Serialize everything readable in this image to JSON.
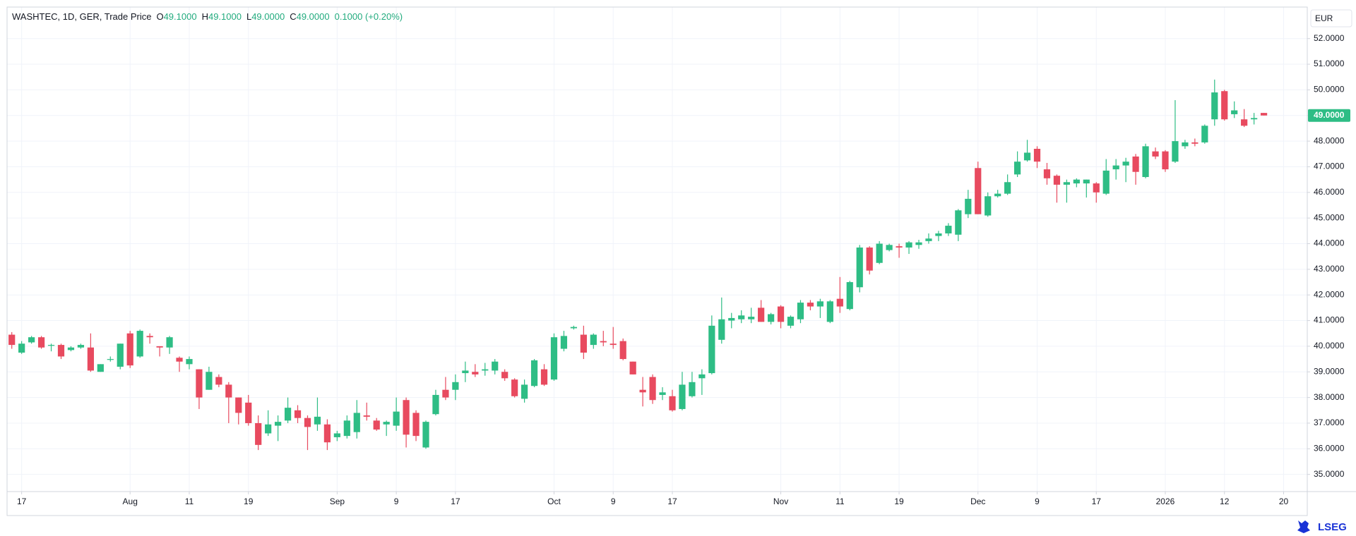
{
  "chart_data": {
    "type": "candlestick",
    "header": {
      "symbol": "WASHTEC, 1D, GER, Trade Price",
      "open_label": "O",
      "open": "49.1000",
      "high_label": "H",
      "high": "49.1000",
      "low_label": "L",
      "low": "49.0000",
      "close_label": "C",
      "close": "49.0000",
      "change": "0.1000 (+0.20%)"
    },
    "currency": "EUR",
    "brand": "LSEG",
    "up_color": "#2ebd85",
    "down_color": "#e84a5f",
    "grid": true,
    "series": {
      "open": [
        40.45,
        39.75,
        40.15,
        40.35,
        40.05,
        40.05,
        39.85,
        39.95,
        39.95,
        39.0,
        39.5,
        39.2,
        40.5,
        39.6,
        40.4,
        40.0,
        39.95,
        39.55,
        39.3,
        39.1,
        38.3,
        38.8,
        38.5,
        38.0,
        37.8,
        37.0,
        36.6,
        36.9,
        37.1,
        37.5,
        37.2,
        36.95,
        36.95,
        36.45,
        36.5,
        36.65,
        37.3,
        37.1,
        36.95,
        36.9,
        37.9,
        37.4,
        36.05,
        37.35,
        38.3,
        38.3,
        38.95,
        39.0,
        39.05,
        39.05,
        39.0,
        38.7,
        37.95,
        38.45,
        39.1,
        38.7,
        39.9,
        40.7,
        40.45,
        40.05,
        40.2,
        40.1,
        40.2,
        39.4,
        38.3,
        38.8,
        38.1,
        38.05,
        37.55,
        38.05,
        38.75,
        38.95,
        40.25,
        41.0,
        41.05,
        41.05,
        41.5,
        40.95,
        41.55,
        40.8,
        41.05,
        41.7,
        41.55,
        40.95,
        41.85,
        41.45,
        42.3,
        43.85,
        43.25,
        43.75,
        43.9,
        43.85,
        43.95,
        44.1,
        44.3,
        44.4,
        44.35,
        45.15,
        46.95,
        45.1,
        45.85,
        45.95,
        46.7,
        47.25,
        47.7,
        46.9,
        46.65,
        46.3,
        46.35,
        46.35,
        46.35,
        45.95,
        46.9,
        47.05,
        47.4,
        46.6,
        47.6,
        47.6,
        47.2,
        47.8,
        47.95,
        47.95,
        48.85,
        49.95,
        49.05,
        48.85,
        48.85,
        49.1
      ],
      "high": [
        40.55,
        40.2,
        40.4,
        40.4,
        40.1,
        40.1,
        40.0,
        40.1,
        40.5,
        39.3,
        39.6,
        40.1,
        40.6,
        40.65,
        40.5,
        40.0,
        40.4,
        39.6,
        39.6,
        39.1,
        39.2,
        38.9,
        38.6,
        38.0,
        38.1,
        37.3,
        37.5,
        37.3,
        38.0,
        37.7,
        37.3,
        38.0,
        37.15,
        36.7,
        37.3,
        37.9,
        37.8,
        37.2,
        37.1,
        38.0,
        38.0,
        37.5,
        37.1,
        38.3,
        38.8,
        38.9,
        39.4,
        39.3,
        39.35,
        39.5,
        39.1,
        38.75,
        38.7,
        39.5,
        39.3,
        40.5,
        40.6,
        40.8,
        40.8,
        40.5,
        40.6,
        40.75,
        40.3,
        39.4,
        38.8,
        38.9,
        38.4,
        38.3,
        39.0,
        39.0,
        39.1,
        41.2,
        41.9,
        41.3,
        41.4,
        41.5,
        41.8,
        41.3,
        41.6,
        41.2,
        41.8,
        41.8,
        41.85,
        41.8,
        42.7,
        42.55,
        43.95,
        43.9,
        44.1,
        44.0,
        44.0,
        44.1,
        44.15,
        44.4,
        44.5,
        44.8,
        45.35,
        46.1,
        47.2,
        46.0,
        46.1,
        46.7,
        47.6,
        48.05,
        47.8,
        47.15,
        46.7,
        46.5,
        46.55,
        46.5,
        46.4,
        47.3,
        47.3,
        47.35,
        47.5,
        47.9,
        47.75,
        47.65,
        49.6,
        48.05,
        48.1,
        48.65,
        50.4,
        50.0,
        49.55,
        49.25,
        49.1,
        49.1
      ],
      "low": [
        39.9,
        39.7,
        40.1,
        39.9,
        39.8,
        39.5,
        39.8,
        39.9,
        39.0,
        39.0,
        39.4,
        39.1,
        39.15,
        39.55,
        40.1,
        39.6,
        39.7,
        39.0,
        39.1,
        37.55,
        38.3,
        38.4,
        37.0,
        36.95,
        36.9,
        35.95,
        36.5,
        36.3,
        37.0,
        37.0,
        35.95,
        36.7,
        35.95,
        36.3,
        36.4,
        36.4,
        37.1,
        36.7,
        36.5,
        36.7,
        36.05,
        36.3,
        36.0,
        37.3,
        37.9,
        37.9,
        38.6,
        38.8,
        38.85,
        38.9,
        38.65,
        38.0,
        37.8,
        38.4,
        38.45,
        38.65,
        39.8,
        40.65,
        39.5,
        39.9,
        40.0,
        39.9,
        39.45,
        38.9,
        37.65,
        37.75,
        37.9,
        37.45,
        37.5,
        38.0,
        38.1,
        38.9,
        40.1,
        40.7,
        40.9,
        40.9,
        40.95,
        40.85,
        40.7,
        40.7,
        40.9,
        41.4,
        41.1,
        40.9,
        41.3,
        41.4,
        42.1,
        42.8,
        43.2,
        43.7,
        43.45,
        43.6,
        43.8,
        44.0,
        44.1,
        44.3,
        44.1,
        45.0,
        45.15,
        45.05,
        45.8,
        45.9,
        46.6,
        47.2,
        46.95,
        46.3,
        45.6,
        45.6,
        46.2,
        45.8,
        45.6,
        45.9,
        46.5,
        46.4,
        46.3,
        46.55,
        47.3,
        46.8,
        47.15,
        47.7,
        47.8,
        47.9,
        48.6,
        48.8,
        48.9,
        48.55,
        48.65,
        49.0
      ],
      "close": [
        40.05,
        40.1,
        40.35,
        39.95,
        40.05,
        39.6,
        39.95,
        40.05,
        39.05,
        39.3,
        39.5,
        40.1,
        39.25,
        40.6,
        40.35,
        39.95,
        40.35,
        39.4,
        39.5,
        38.0,
        39.0,
        38.5,
        38.0,
        37.4,
        37.0,
        36.15,
        36.95,
        37.05,
        37.6,
        37.2,
        36.85,
        37.25,
        36.25,
        36.6,
        37.1,
        37.4,
        37.25,
        36.75,
        37.05,
        37.45,
        36.55,
        36.5,
        37.05,
        38.1,
        38.0,
        38.6,
        39.05,
        38.9,
        39.1,
        39.4,
        38.75,
        38.05,
        38.5,
        39.45,
        38.5,
        40.35,
        40.4,
        40.75,
        39.75,
        40.45,
        40.15,
        40.05,
        39.5,
        38.9,
        38.2,
        37.9,
        38.2,
        37.5,
        38.5,
        38.6,
        38.9,
        40.8,
        41.05,
        41.1,
        41.2,
        41.15,
        40.95,
        41.25,
        40.95,
        41.15,
        41.7,
        41.55,
        41.75,
        41.75,
        41.55,
        42.5,
        43.85,
        42.95,
        44.0,
        43.95,
        43.85,
        44.05,
        44.05,
        44.2,
        44.4,
        44.7,
        45.3,
        45.75,
        45.15,
        45.85,
        45.95,
        46.4,
        47.2,
        47.55,
        47.2,
        46.55,
        46.3,
        46.4,
        46.5,
        46.5,
        46.0,
        46.85,
        47.05,
        47.2,
        46.8,
        47.8,
        47.4,
        46.9,
        48.0,
        47.95,
        47.9,
        48.6,
        49.9,
        48.85,
        49.2,
        48.6,
        48.9,
        49.0
      ]
    },
    "last_price": {
      "value": 49,
      "label": "49.0000"
    },
    "xlim": [
      -0.48,
      131.4
    ],
    "xticks": [
      {
        "value": 1,
        "label": "17"
      },
      {
        "value": 12,
        "label": "Aug"
      },
      {
        "value": 18,
        "label": "11"
      },
      {
        "value": 24,
        "label": "19"
      },
      {
        "value": 33,
        "label": "Sep"
      },
      {
        "value": 39,
        "label": "9"
      },
      {
        "value": 45,
        "label": "17"
      },
      {
        "value": 55,
        "label": "Oct"
      },
      {
        "value": 61,
        "label": "9"
      },
      {
        "value": 67,
        "label": "17"
      },
      {
        "value": 78,
        "label": "Nov"
      },
      {
        "value": 84,
        "label": "11"
      },
      {
        "value": 90,
        "label": "19"
      },
      {
        "value": 98,
        "label": "Dec"
      },
      {
        "value": 104,
        "label": "9"
      },
      {
        "value": 110,
        "label": "17"
      },
      {
        "value": 117,
        "label": "2026"
      },
      {
        "value": 123,
        "label": "12"
      },
      {
        "value": 129,
        "label": "20"
      }
    ],
    "ylim": [
      34.33,
      53.23
    ],
    "yticks": [
      {
        "value": 35,
        "label": "35.0000"
      },
      {
        "value": 36,
        "label": "36.0000"
      },
      {
        "value": 37,
        "label": "37.0000"
      },
      {
        "value": 38,
        "label": "38.0000"
      },
      {
        "value": 39,
        "label": "39.0000"
      },
      {
        "value": 40,
        "label": "40.0000"
      },
      {
        "value": 41,
        "label": "41.0000"
      },
      {
        "value": 42,
        "label": "42.0000"
      },
      {
        "value": 43,
        "label": "43.0000"
      },
      {
        "value": 44,
        "label": "44.0000"
      },
      {
        "value": 45,
        "label": "45.0000"
      },
      {
        "value": 46,
        "label": "46.0000"
      },
      {
        "value": 47,
        "label": "47.0000"
      },
      {
        "value": 48,
        "label": "48.0000"
      },
      {
        "value": 49,
        "label": "49.0000"
      },
      {
        "value": 50,
        "label": "50.0000"
      },
      {
        "value": 51,
        "label": "51.0000"
      },
      {
        "value": 52,
        "label": "52.0000"
      }
    ]
  }
}
